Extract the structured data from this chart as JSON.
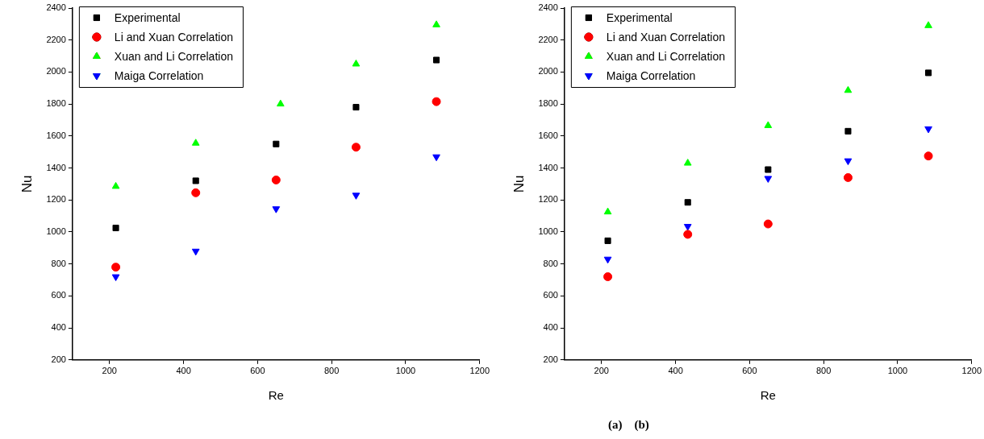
{
  "chart_data": [
    {
      "type": "scatter",
      "xlabel": "Re",
      "ylabel": "Nu",
      "xlim": [
        100,
        1200
      ],
      "ylim": [
        200,
        2400
      ],
      "xticks": [
        200,
        400,
        600,
        800,
        1000,
        1200
      ],
      "yticks": [
        200,
        400,
        600,
        800,
        1000,
        1200,
        1400,
        1600,
        1800,
        2000,
        2200,
        2400
      ],
      "legend": "top left",
      "grid": false,
      "series": [
        {
          "name": "Experimental",
          "color": "#000000",
          "marker": "square",
          "x": [
            217,
            433,
            650,
            866,
            1083
          ],
          "values": [
            1025,
            1320,
            1550,
            1780,
            2075
          ]
        },
        {
          "name": "Li and Xuan Correlation",
          "color": "#ff0000",
          "marker": "circle",
          "x": [
            217,
            433,
            650,
            866,
            1083
          ],
          "values": [
            780,
            1245,
            1325,
            1530,
            1815
          ]
        },
        {
          "name": "Xuan and Li Correlation",
          "color": "#00ff00",
          "marker": "triangle",
          "x": [
            217,
            433,
            662,
            866,
            1083
          ],
          "values": [
            1285,
            1555,
            1800,
            2050,
            2295
          ]
        },
        {
          "name": "Maiga Correlation",
          "color": "#0000ff",
          "marker": "triangle-down",
          "x": [
            217,
            433,
            650,
            866,
            1083
          ],
          "values": [
            720,
            880,
            1145,
            1230,
            1470
          ]
        }
      ]
    },
    {
      "type": "scatter",
      "xlabel": "Re",
      "ylabel": "Nu",
      "xlim": [
        100,
        1200
      ],
      "ylim": [
        200,
        2400
      ],
      "xticks": [
        200,
        400,
        600,
        800,
        1000,
        1200
      ],
      "yticks": [
        200,
        400,
        600,
        800,
        1000,
        1200,
        1400,
        1600,
        1800,
        2000,
        2200,
        2400
      ],
      "legend": "top left",
      "grid": false,
      "series": [
        {
          "name": "Experimental",
          "color": "#000000",
          "marker": "square",
          "x": [
            217,
            433,
            650,
            866,
            1083
          ],
          "values": [
            945,
            1185,
            1390,
            1630,
            1995
          ]
        },
        {
          "name": "Li and Xuan Correlation",
          "color": "#ff0000",
          "marker": "circle",
          "x": [
            217,
            433,
            650,
            866,
            1083
          ],
          "values": [
            720,
            985,
            1050,
            1340,
            1475
          ]
        },
        {
          "name": "Xuan and Li Correlation",
          "color": "#00ff00",
          "marker": "triangle",
          "x": [
            217,
            433,
            650,
            866,
            1083
          ],
          "values": [
            1125,
            1430,
            1665,
            1885,
            2290
          ]
        },
        {
          "name": "Maiga Correlation",
          "color": "#0000ff",
          "marker": "triangle-down",
          "x": [
            217,
            433,
            650,
            866,
            1083
          ],
          "values": [
            830,
            1035,
            1335,
            1445,
            1645
          ]
        }
      ],
      "annotations": [
        "(a)    (b)"
      ]
    }
  ]
}
